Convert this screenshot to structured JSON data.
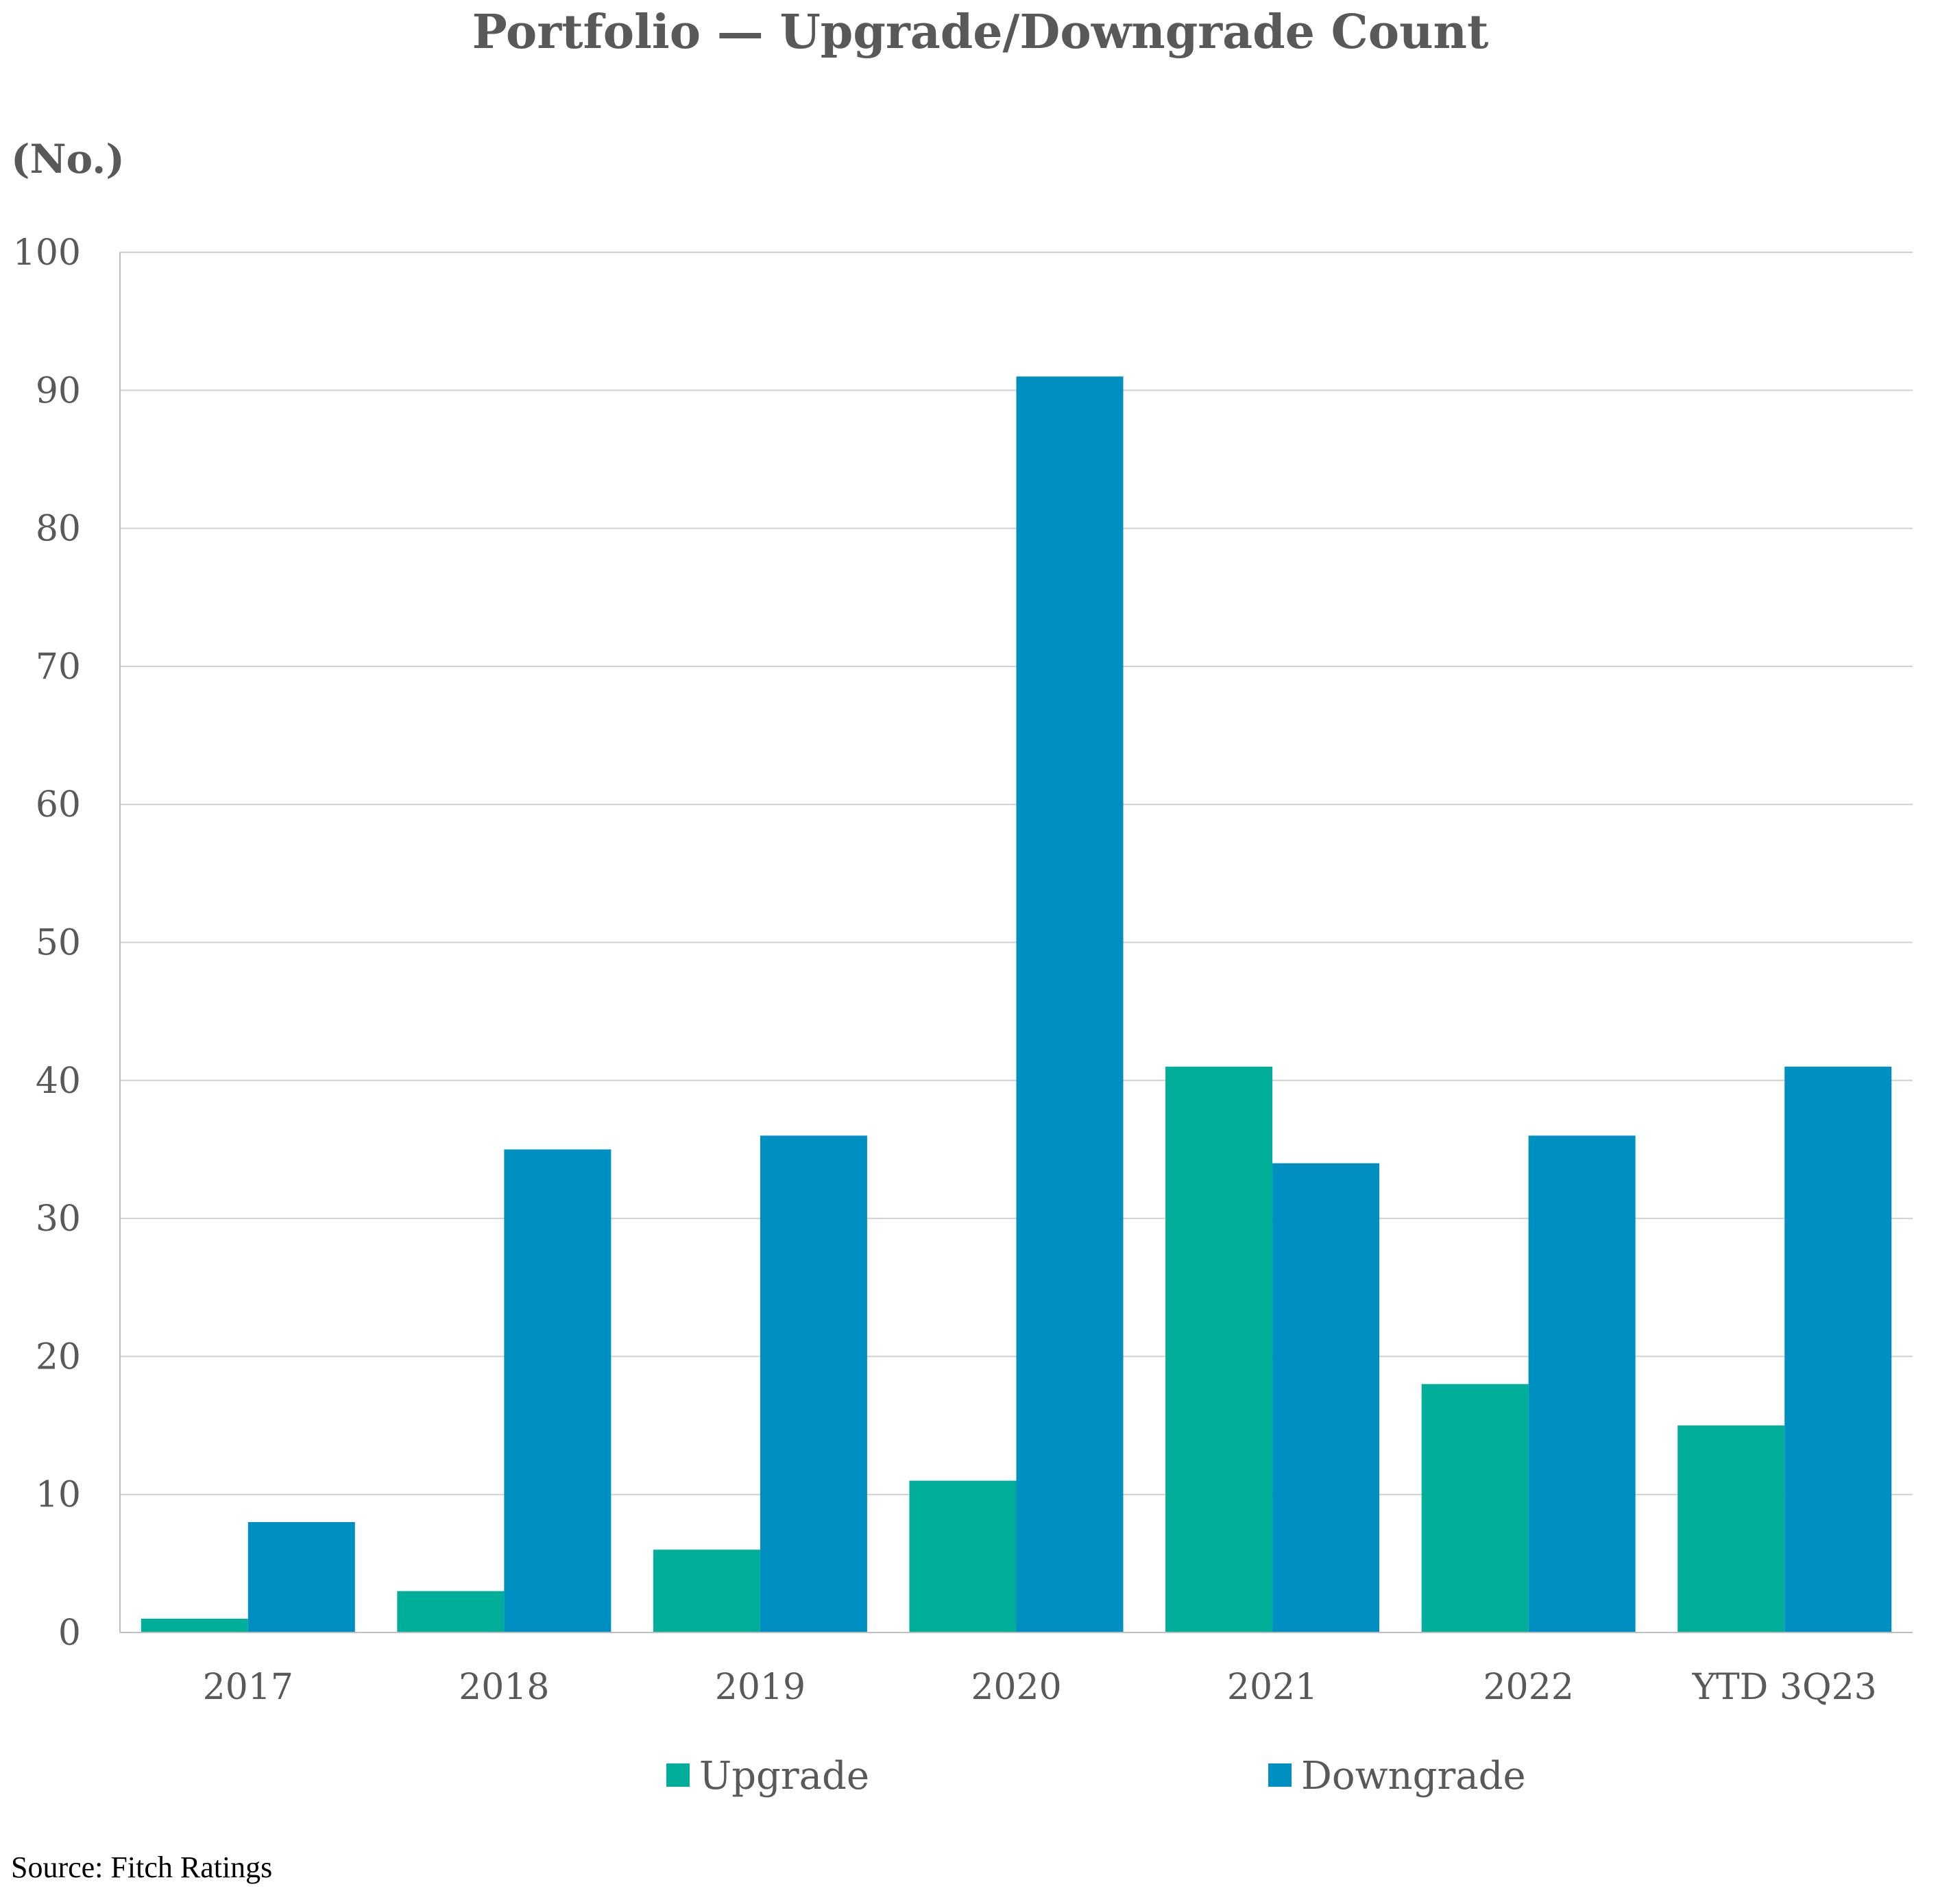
{
  "chart_data": {
    "type": "bar",
    "title": "Portfolio — Upgrade/Downgrade Count",
    "ylabel": "(No.)",
    "xlabel": "",
    "categories": [
      "2017",
      "2018",
      "2019",
      "2020",
      "2021",
      "2022",
      "YTD 3Q23"
    ],
    "series": [
      {
        "name": "Upgrade",
        "color": "#00ae9a",
        "values": [
          1,
          3,
          6,
          11,
          41,
          18,
          15
        ]
      },
      {
        "name": "Downgrade",
        "color": "#008fc1",
        "values": [
          8,
          35,
          36,
          91,
          34,
          36,
          41
        ]
      }
    ],
    "ylim": [
      0,
      100
    ],
    "yticks": [
      0,
      10,
      20,
      30,
      40,
      50,
      60,
      70,
      80,
      90,
      100
    ],
    "grid": true,
    "legend_position": "bottom"
  },
  "source": "Source: Fitch Ratings"
}
